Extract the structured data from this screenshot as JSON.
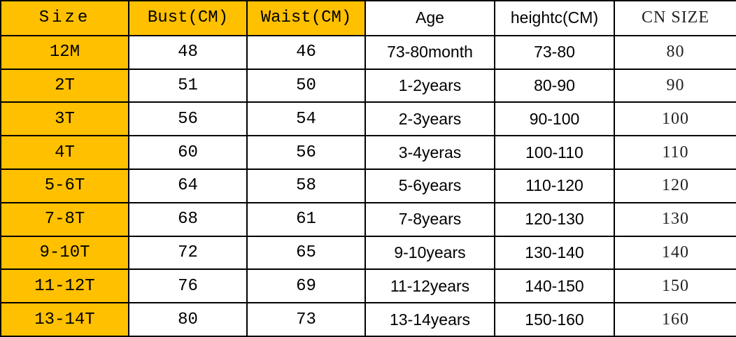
{
  "table": {
    "header": [
      "Size",
      "Bust(CM)",
      "Waist(CM)",
      "Age",
      "heightc(CM)",
      "CN SIZE"
    ],
    "rows": [
      [
        "12M",
        48,
        46,
        "73-80month",
        "73-80",
        80
      ],
      [
        "2T",
        51,
        50,
        "1-2years",
        "80-90",
        90
      ],
      [
        "3T",
        56,
        54,
        "2-3years",
        "90-100",
        100
      ],
      [
        "4T",
        60,
        56,
        "3-4yeras",
        "100-110",
        110
      ],
      [
        "5-6T",
        64,
        58,
        "5-6years",
        "110-120",
        120
      ],
      [
        "7-8T",
        68,
        61,
        "7-8years",
        "120-130",
        130
      ],
      [
        "9-10T",
        72,
        65,
        "9-10years",
        "130-140",
        140
      ],
      [
        "11-12T",
        76,
        69,
        "11-12years",
        "140-150",
        150
      ],
      [
        "13-14T",
        80,
        73,
        "13-14years",
        "150-160",
        160
      ]
    ]
  }
}
